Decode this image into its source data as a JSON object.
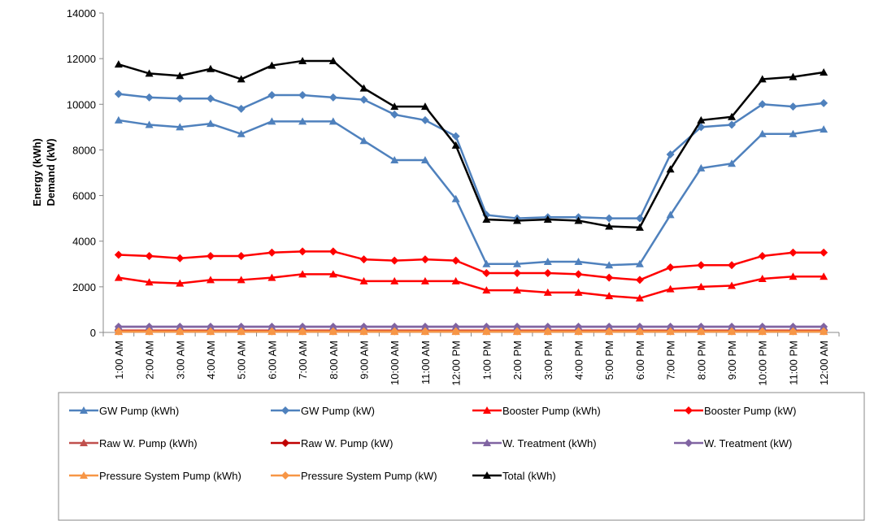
{
  "chart_data": {
    "type": "line",
    "y_label": [
      "Energy (kWh)",
      "Demand (kW)"
    ],
    "categories": [
      "1:00 AM",
      "2:00 AM",
      "3:00 AM",
      "4:00 AM",
      "5:00 AM",
      "6:00 AM",
      "7:00 AM",
      "8:00 AM",
      "9:00 AM",
      "10:00 AM",
      "11:00 AM",
      "12:00 PM",
      "1:00 PM",
      "2:00 PM",
      "3:00 PM",
      "4:00 PM",
      "5:00 PM",
      "6:00 PM",
      "7:00 PM",
      "8:00 PM",
      "9:00 PM",
      "10:00 PM",
      "11:00 PM",
      "12:00 AM"
    ],
    "ylim": [
      0,
      14000
    ],
    "yticks": [
      0,
      2000,
      4000,
      6000,
      8000,
      10000,
      12000,
      14000
    ],
    "grid": false,
    "legend": "bottom",
    "series": [
      {
        "name": "GW Pump  (kWh)",
        "color": "#4f81bd",
        "marker": "triangle",
        "values": [
          9300,
          9100,
          9000,
          9150,
          8700,
          9250,
          9250,
          9250,
          8400,
          7550,
          7550,
          5850,
          3000,
          3000,
          3100,
          3100,
          2950,
          3000,
          5150,
          7200,
          7400,
          8700,
          8700,
          8900
        ]
      },
      {
        "name": "GW Pump  (kW)",
        "color": "#4f81bd",
        "marker": "diamond",
        "values": [
          10450,
          10300,
          10250,
          10250,
          9800,
          10400,
          10400,
          10300,
          10200,
          9550,
          9300,
          8600,
          5150,
          5000,
          5050,
          5050,
          5000,
          5000,
          7800,
          9000,
          9100,
          10000,
          9900,
          10050
        ]
      },
      {
        "name": "Booster Pump (kWh)",
        "color": "#ff0000",
        "marker": "triangle",
        "values": [
          2400,
          2200,
          2150,
          2300,
          2300,
          2400,
          2550,
          2550,
          2250,
          2250,
          2250,
          2250,
          1850,
          1850,
          1750,
          1750,
          1600,
          1500,
          1900,
          2000,
          2050,
          2350,
          2450,
          2450
        ]
      },
      {
        "name": "Booster Pump (kW)",
        "color": "#ff0000",
        "marker": "diamond",
        "values": [
          3400,
          3350,
          3250,
          3350,
          3350,
          3500,
          3550,
          3550,
          3200,
          3150,
          3200,
          3150,
          2600,
          2600,
          2600,
          2550,
          2400,
          2300,
          2850,
          2950,
          2950,
          3350,
          3500,
          3500
        ]
      },
      {
        "name": "Raw W. Pump (kWh)",
        "color": "#c0504d",
        "marker": "triangle",
        "values": [
          50,
          50,
          50,
          50,
          50,
          50,
          50,
          50,
          50,
          50,
          50,
          50,
          50,
          50,
          50,
          50,
          50,
          50,
          50,
          50,
          50,
          50,
          50,
          50
        ]
      },
      {
        "name": "Raw W. Pump (kW)",
        "color": "#c00000",
        "marker": "diamond",
        "values": [
          80,
          80,
          80,
          80,
          80,
          80,
          80,
          80,
          80,
          80,
          80,
          80,
          80,
          80,
          80,
          80,
          80,
          80,
          80,
          80,
          80,
          80,
          80,
          80
        ]
      },
      {
        "name": "W. Treatment (kWh)",
        "color": "#8064a2",
        "marker": "triangle",
        "values": [
          250,
          250,
          250,
          250,
          250,
          250,
          250,
          250,
          250,
          250,
          250,
          250,
          250,
          250,
          250,
          250,
          250,
          250,
          250,
          250,
          250,
          250,
          250,
          250
        ]
      },
      {
        "name": "W. Treatment (kW)",
        "color": "#8064a2",
        "marker": "diamond",
        "values": [
          250,
          250,
          250,
          250,
          250,
          250,
          250,
          250,
          250,
          250,
          250,
          250,
          250,
          250,
          250,
          250,
          250,
          250,
          250,
          250,
          250,
          250,
          250,
          250
        ]
      },
      {
        "name": "Pressure System Pump (kWh)",
        "color": "#f79646",
        "marker": "triangle",
        "values": [
          30,
          30,
          30,
          30,
          30,
          30,
          30,
          30,
          30,
          30,
          30,
          30,
          30,
          30,
          30,
          30,
          30,
          30,
          30,
          30,
          30,
          30,
          30,
          30
        ]
      },
      {
        "name": "Pressure System Pump (kW)",
        "color": "#f79646",
        "marker": "diamond",
        "values": [
          50,
          50,
          50,
          50,
          50,
          50,
          50,
          50,
          50,
          50,
          50,
          50,
          50,
          50,
          50,
          50,
          50,
          50,
          50,
          50,
          50,
          50,
          50,
          50
        ]
      },
      {
        "name": "Total (kWh)",
        "color": "#000000",
        "marker": "triangle",
        "values": [
          11750,
          11350,
          11250,
          11550,
          11100,
          11700,
          11900,
          11900,
          10700,
          9900,
          9900,
          8200,
          4950,
          4900,
          4950,
          4900,
          4650,
          4600,
          7150,
          9300,
          9450,
          11100,
          11200,
          11400
        ]
      }
    ]
  }
}
